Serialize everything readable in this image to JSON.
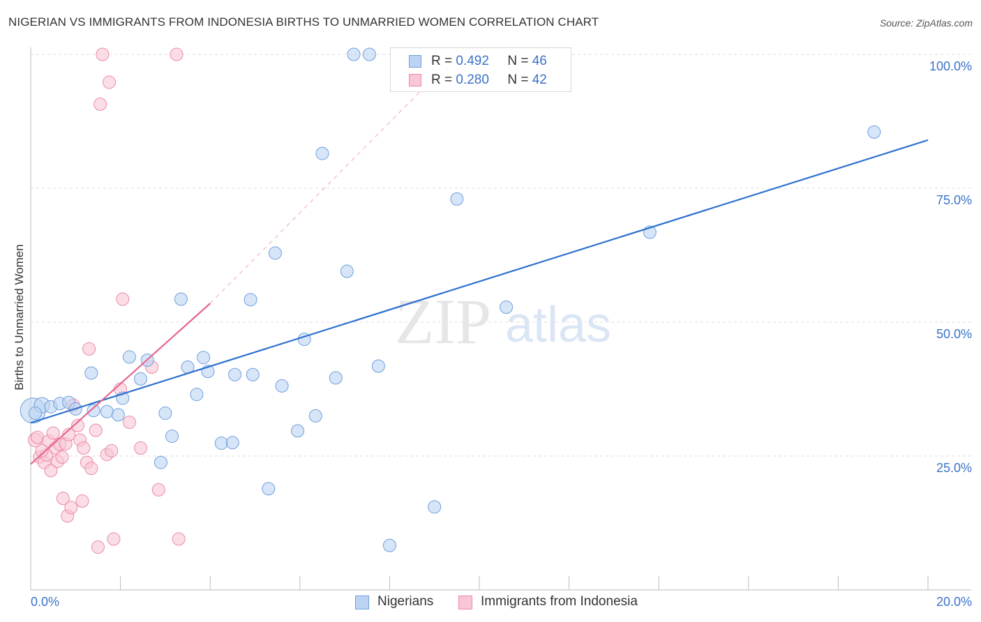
{
  "header": {
    "title": "NIGERIAN VS IMMIGRANTS FROM INDONESIA BIRTHS TO UNMARRIED WOMEN CORRELATION CHART",
    "source": "Source: ZipAtlas.com"
  },
  "legend": {
    "r_label": "R =",
    "n_label": "N =",
    "series": [
      {
        "r": "0.492",
        "n": "46"
      },
      {
        "r": "0.280",
        "n": "42"
      }
    ]
  },
  "watermark": {
    "part1": "ZIP",
    "part2": "atlas"
  },
  "colors": {
    "blue_fill": "#bcd4f4",
    "blue_stroke": "#6f9fdc",
    "blue_line": "#2c6fcf",
    "pink_fill": "#f8c6d4",
    "pink_stroke": "#ec8aa6",
    "pink_line": "#e6658f",
    "axis_text": "#3a72c8"
  },
  "chart_data": {
    "type": "scatter",
    "title": "NIGERIAN VS IMMIGRANTS FROM INDONESIA BIRTHS TO UNMARRIED WOMEN CORRELATION CHART",
    "xlabel": "",
    "ylabel": "Births to Unmarried Women",
    "xlim": [
      0,
      20
    ],
    "ylim": [
      0,
      100
    ],
    "x_tick_labels": [
      "0.0%",
      "20.0%"
    ],
    "y_ticks": [
      25,
      50,
      75,
      100
    ],
    "y_tick_labels": [
      "25.0%",
      "50.0%",
      "75.0%",
      "100.0%"
    ],
    "grid": true,
    "legend_position": "top-center",
    "series": [
      {
        "name": "Nigerians",
        "color": "#6f9fdc",
        "r": 0.492,
        "n": 46,
        "trend": {
          "x0": 0,
          "y0": 31.2,
          "x1": 20,
          "y1": 84.0,
          "dashed_extension": false
        },
        "points": [
          [
            0.05,
            33.5,
            18
          ],
          [
            0.25,
            34.5,
            11
          ],
          [
            0.45,
            34.2,
            9
          ],
          [
            0.65,
            34.8,
            9
          ],
          [
            0.85,
            35.0,
            9
          ],
          [
            1.0,
            33.8,
            9
          ],
          [
            1.35,
            40.5,
            9
          ],
          [
            1.4,
            33.5,
            9
          ],
          [
            1.7,
            33.3,
            9
          ],
          [
            1.95,
            32.7,
            9
          ],
          [
            2.05,
            35.8,
            9
          ],
          [
            2.2,
            43.5,
            9
          ],
          [
            2.45,
            39.4,
            9
          ],
          [
            2.6,
            42.9,
            9
          ],
          [
            2.9,
            23.8,
            9
          ],
          [
            3.0,
            33.0,
            9
          ],
          [
            3.15,
            28.7,
            9
          ],
          [
            3.35,
            54.3,
            9
          ],
          [
            3.5,
            41.6,
            9
          ],
          [
            3.7,
            36.5,
            9
          ],
          [
            3.85,
            43.4,
            9
          ],
          [
            3.95,
            40.8,
            9
          ],
          [
            4.25,
            27.4,
            9
          ],
          [
            4.5,
            27.5,
            9
          ],
          [
            4.55,
            40.2,
            9
          ],
          [
            4.9,
            54.2,
            9
          ],
          [
            4.95,
            40.2,
            9
          ],
          [
            5.3,
            18.9,
            9
          ],
          [
            5.45,
            62.9,
            9
          ],
          [
            5.6,
            38.1,
            9
          ],
          [
            5.95,
            29.7,
            9
          ],
          [
            6.1,
            46.8,
            9
          ],
          [
            6.35,
            32.5,
            9
          ],
          [
            6.5,
            81.5,
            9
          ],
          [
            6.8,
            39.6,
            9
          ],
          [
            7.05,
            59.5,
            9
          ],
          [
            7.2,
            100.0,
            9
          ],
          [
            7.55,
            100.0,
            9
          ],
          [
            7.75,
            41.8,
            9
          ],
          [
            8.0,
            8.3,
            9
          ],
          [
            9.0,
            15.5,
            9
          ],
          [
            9.5,
            73.0,
            9
          ],
          [
            10.6,
            52.8,
            9
          ],
          [
            13.8,
            66.8,
            9
          ],
          [
            18.8,
            85.5,
            9
          ],
          [
            0.1,
            33.0,
            9
          ]
        ]
      },
      {
        "name": "Immigrants from Indonesia",
        "color": "#ec8aa6",
        "r": 0.28,
        "n": 42,
        "trend": {
          "x0": 0,
          "y0": 23.5,
          "x1": 4.0,
          "y1": 53.5,
          "dash_to_x": 9.5,
          "dash_to_y": 100.0
        },
        "points": [
          [
            0.1,
            28.0,
            10
          ],
          [
            0.15,
            28.5,
            9
          ],
          [
            0.2,
            24.8,
            9
          ],
          [
            0.3,
            23.8,
            9
          ],
          [
            0.35,
            25.2,
            9
          ],
          [
            0.4,
            27.8,
            9
          ],
          [
            0.45,
            22.3,
            9
          ],
          [
            0.5,
            29.3,
            9
          ],
          [
            0.55,
            26.5,
            9
          ],
          [
            0.6,
            24.0,
            9
          ],
          [
            0.65,
            27.2,
            9
          ],
          [
            0.7,
            24.8,
            9
          ],
          [
            0.72,
            17.1,
            9
          ],
          [
            0.78,
            27.3,
            9
          ],
          [
            0.82,
            13.8,
            9
          ],
          [
            0.85,
            29.0,
            9
          ],
          [
            0.9,
            15.4,
            9
          ],
          [
            0.95,
            34.5,
            9
          ],
          [
            1.05,
            30.7,
            9
          ],
          [
            1.1,
            28.0,
            9
          ],
          [
            1.15,
            16.6,
            9
          ],
          [
            1.18,
            26.5,
            9
          ],
          [
            1.25,
            23.8,
            9
          ],
          [
            1.3,
            45.0,
            9
          ],
          [
            1.35,
            22.7,
            9
          ],
          [
            1.45,
            29.8,
            9
          ],
          [
            1.5,
            8.0,
            9
          ],
          [
            1.55,
            90.7,
            9
          ],
          [
            1.6,
            100.0,
            9
          ],
          [
            1.7,
            25.3,
            9
          ],
          [
            1.75,
            94.8,
            9
          ],
          [
            1.8,
            26.0,
            9
          ],
          [
            1.85,
            9.5,
            9
          ],
          [
            2.0,
            37.5,
            9
          ],
          [
            2.05,
            54.3,
            9
          ],
          [
            2.2,
            31.3,
            9
          ],
          [
            2.45,
            26.5,
            9
          ],
          [
            2.7,
            41.6,
            9
          ],
          [
            2.85,
            18.7,
            9
          ],
          [
            3.25,
            100.0,
            9
          ],
          [
            3.3,
            9.5,
            9
          ],
          [
            0.25,
            26.0,
            9
          ]
        ]
      }
    ]
  },
  "bottom_legend": {
    "items": [
      {
        "label": "Nigerians"
      },
      {
        "label": "Immigrants from Indonesia"
      }
    ]
  }
}
